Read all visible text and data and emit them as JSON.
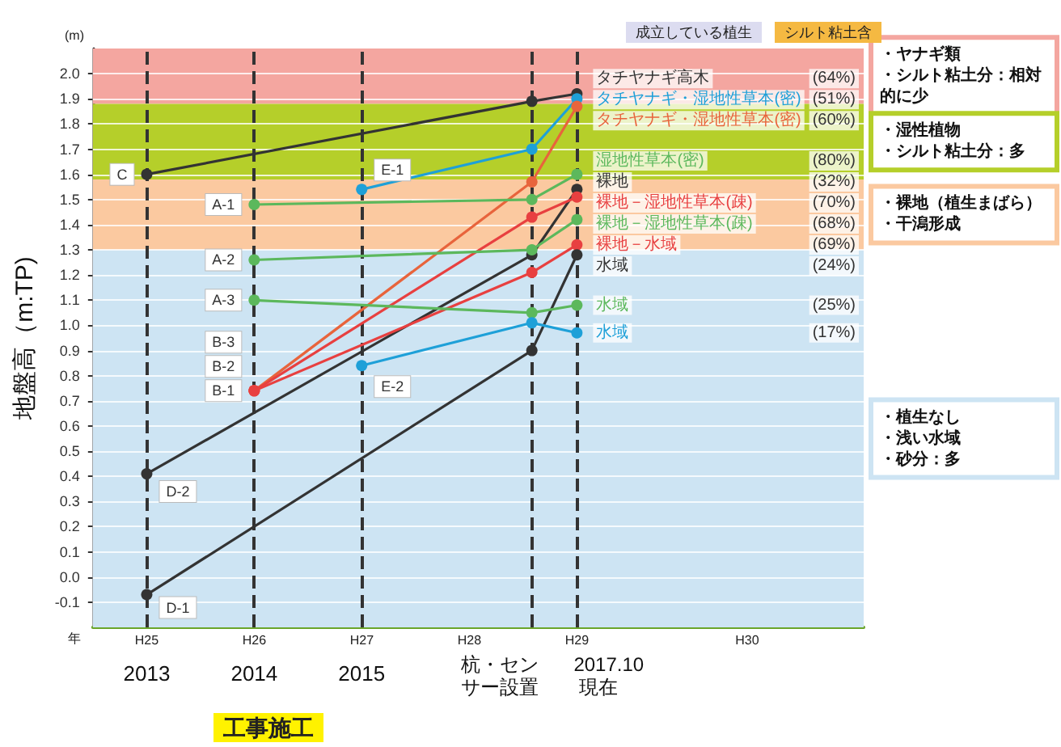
{
  "chart_data": {
    "type": "line",
    "ylabel": "地盤高（m:TP)",
    "xlim": [
      "2013-04",
      "2020-06"
    ],
    "xticks": [
      {
        "value": "2013-10",
        "label": "2013"
      },
      {
        "value": "2014-10",
        "label": "2014"
      },
      {
        "value": "2015-10",
        "label": "2015"
      }
    ],
    "ylim": [
      -0.2,
      2.1
    ],
    "yticks": [
      -0.1,
      {
        "value": 0,
        "label": "0.0"
      },
      0.1,
      0.2,
      0.3,
      0.4,
      0.5,
      0.6,
      0.7,
      0.8,
      0.9,
      {
        "value": 1,
        "label": "1.0"
      },
      1.1,
      1.2,
      1.3,
      1.4,
      1.5,
      1.6,
      1.7,
      1.8,
      1.9,
      {
        "value": 2,
        "label": "2.0"
      }
    ],
    "grid": "y",
    "marker": "circle",
    "line_style": "solid",
    "series": [
      {
        "color": "#333333",
        "x": [
          "2013-10",
          "2017-05",
          "2017-10"
        ],
        "values": [
          1.6,
          1.89,
          1.92
        ]
      },
      {
        "color": "#1ea0d8",
        "x": [
          "2015-10",
          "2017-05",
          "2017-10"
        ],
        "values": [
          1.54,
          1.7,
          1.9
        ]
      },
      {
        "color": "#e8643c",
        "x": [
          "2014-10",
          "2017-05",
          "2017-10"
        ],
        "values": [
          0.74,
          1.57,
          1.87
        ]
      },
      {
        "color": "#5cb85c",
        "x": [
          "2014-10",
          "2017-05",
          "2017-10"
        ],
        "values": [
          1.48,
          1.5,
          1.6
        ]
      },
      {
        "color": "#333333",
        "x": [
          "2013-10",
          "2017-05",
          "2017-10"
        ],
        "values": [
          0.41,
          1.28,
          1.54
        ]
      },
      {
        "color": "#e84040",
        "x": [
          "2014-10",
          "2017-05",
          "2017-10"
        ],
        "values": [
          0.74,
          1.43,
          1.51
        ]
      },
      {
        "color": "#5cb85c",
        "x": [
          "2014-10",
          "2017-05",
          "2017-10"
        ],
        "values": [
          1.26,
          1.3,
          1.42
        ]
      },
      {
        "color": "#e84040",
        "x": [
          "2014-10",
          "2017-05",
          "2017-10"
        ],
        "values": [
          0.74,
          1.21,
          1.32
        ]
      },
      {
        "color": "#333333",
        "x": [
          "2013-10",
          "2017-05",
          "2017-10"
        ],
        "values": [
          -0.07,
          0.9,
          1.28
        ]
      },
      {
        "color": "#5cb85c",
        "x": [
          "2014-10",
          "2017-05",
          "2017-10"
        ],
        "values": [
          1.1,
          1.05,
          1.08
        ]
      },
      {
        "color": "#1ea0d8",
        "x": [
          "2015-10",
          "2017-05",
          "2017-10"
        ],
        "values": [
          0.84,
          1.01,
          0.97
        ]
      }
    ],
    "bands": [
      {
        "axis": "y",
        "from": 1.88,
        "to": 2.1,
        "color": "#f4a6a0",
        "label": "・ヤナギ類・シルト粘土分：相対的に少"
      },
      {
        "axis": "y",
        "from": 1.58,
        "to": 1.88,
        "color": "#b5cf2a",
        "label": "・湿性植物・シルト粘土分：多"
      },
      {
        "axis": "y",
        "from": 1.3,
        "to": 1.58,
        "color": "#fbc9a0",
        "label": "・裸地（植生まばら）・干潟形成"
      },
      {
        "axis": "y",
        "from": -0.2,
        "to": 1.3,
        "color": "#cde4f3",
        "label": "・植生なし・浅い水域・砂分：多"
      }
    ],
    "ref_lines": [
      {
        "axis": "x",
        "value": "2013-10",
        "color": "#333333",
        "line_style": "dashed"
      },
      {
        "axis": "x",
        "value": "2014-10",
        "color": "#333333",
        "line_style": "dashed"
      },
      {
        "axis": "x",
        "value": "2015-10",
        "color": "#333333",
        "line_style": "dashed"
      },
      {
        "axis": "x",
        "value": "2017-05",
        "color": "#333333",
        "line_style": "dashed",
        "label": "杭・センサー設置"
      },
      {
        "axis": "x",
        "value": "2017-10",
        "color": "#333333",
        "line_style": "dashed",
        "label": "2017.10 現在"
      }
    ],
    "annotations": [
      "(m)",
      "成立している植生",
      "シルト粘土含",
      "年",
      "工事施工",
      "H25",
      "H26",
      "H27",
      "H28",
      "H29",
      "H30",
      "C",
      "E-1",
      "B-3",
      "A-1",
      "D-2",
      "B-2",
      "A-2",
      "B-1",
      "D-1",
      "A-3",
      "E-2",
      "タチヤナギ高木",
      "タチヤナギ・湿地性草本(密)",
      "タチヤナギ・湿地性草本(密)",
      "湿地性草本(密)",
      "裸地",
      "裸地－湿地性草本(疎)",
      "裸地－湿地性草本(疎)",
      "裸地－水域",
      "水域",
      "水域",
      "水域",
      "(64%)",
      "(51%)",
      "(60%)",
      "(80%)",
      "(32%)",
      "(70%)",
      "(68%)",
      "(69%)",
      "(24%)",
      "(25%)",
      "(17%)"
    ]
  }
}
